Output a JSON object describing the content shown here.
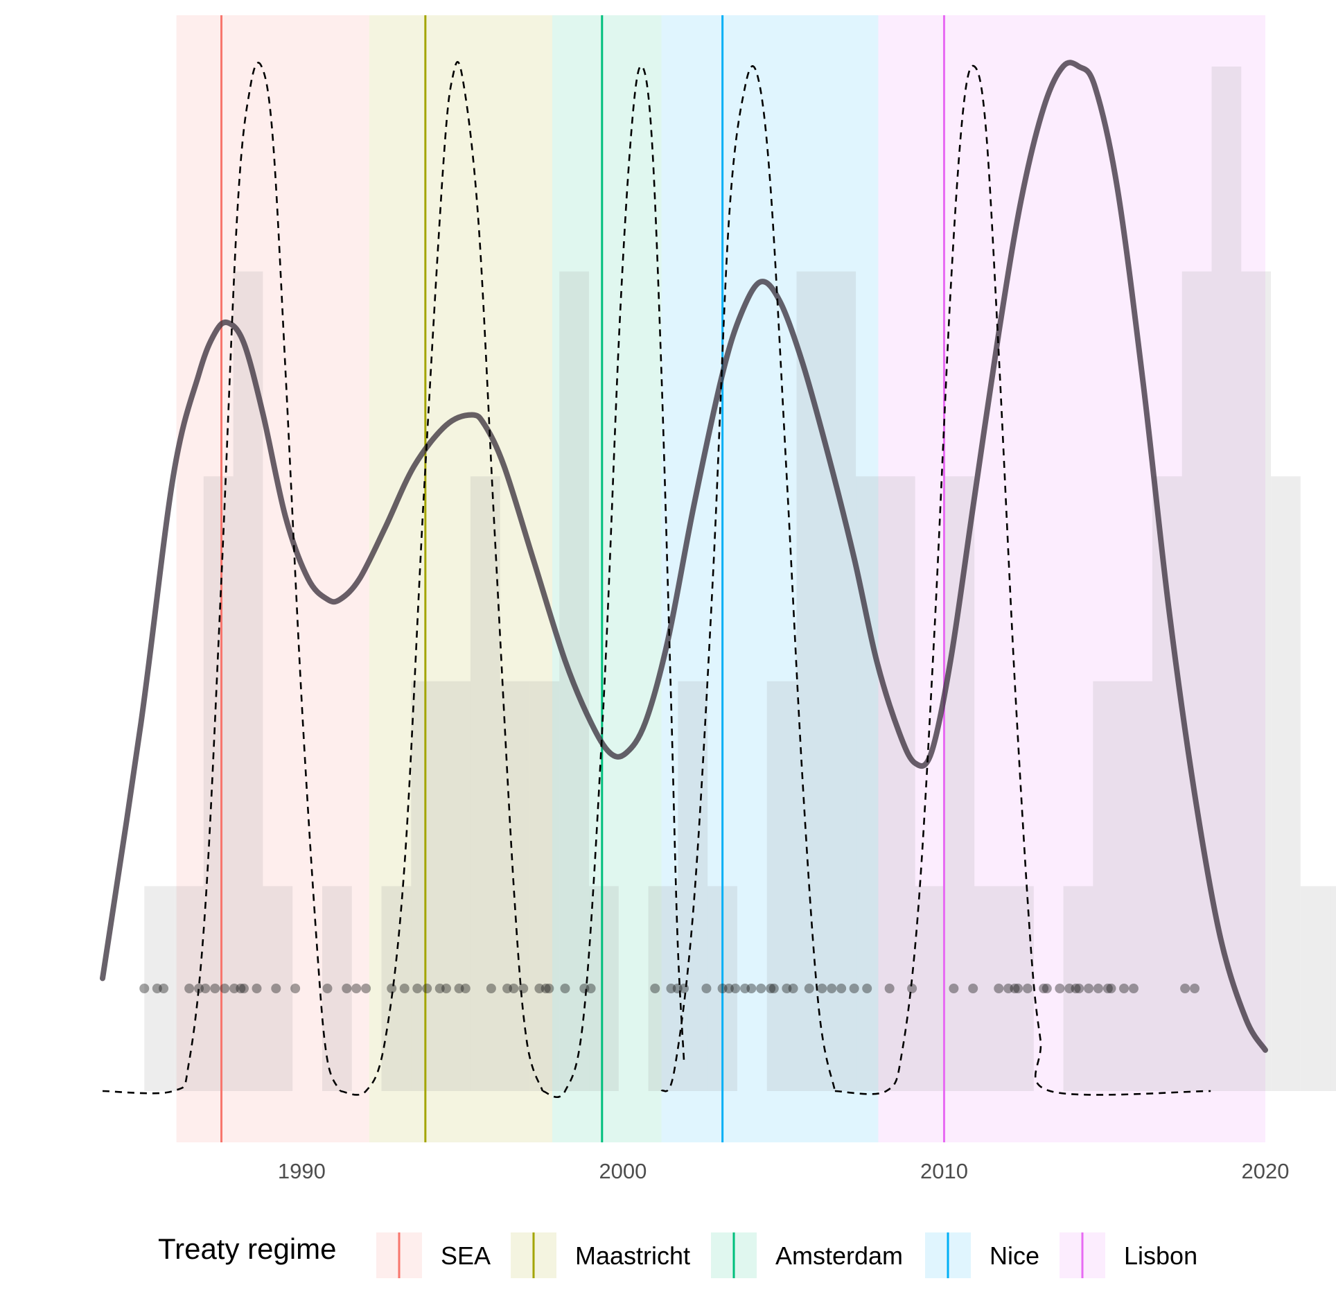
{
  "chart_data": {
    "type": "area",
    "xlim": [
      1983.8,
      2020
    ],
    "ylim": [
      0,
      1
    ],
    "x_ticks": [
      "1990",
      "2000",
      "2010",
      "2020"
    ],
    "x_tick_values": [
      1990,
      2000,
      2010,
      2020
    ],
    "grid": false,
    "legend_position": "bottom",
    "legend": {
      "title": "Treaty regime",
      "entries": [
        {
          "label": "SEA",
          "color": "#F8766D"
        },
        {
          "label": "Maastricht",
          "color": "#A3A500"
        },
        {
          "label": "Amsterdam",
          "color": "#00BF7D"
        },
        {
          "label": "Nice",
          "color": "#00B0F6"
        },
        {
          "label": "Lisbon",
          "color": "#E76BF3"
        }
      ]
    },
    "regimes": [
      {
        "name": "SEA",
        "start": 1986.1,
        "end": 1992.1,
        "signed": 1987.5,
        "color": "#F8766D"
      },
      {
        "name": "Maastricht",
        "start": 1992.1,
        "end": 1997.8,
        "signed": 1993.85,
        "color": "#A3A500"
      },
      {
        "name": "Amsterdam",
        "start": 1997.8,
        "end": 2001.2,
        "signed": 1999.35,
        "color": "#00BF7D"
      },
      {
        "name": "Nice",
        "start": 2001.2,
        "end": 2007.95,
        "signed": 2003.1,
        "color": "#00B0F6"
      },
      {
        "name": "Lisbon",
        "start": 2007.95,
        "end": 2020,
        "signed": 2010.0,
        "color": "#E76BF3"
      }
    ],
    "histogram": {
      "bin_width": 0.923,
      "first_edge": 1985.1,
      "counts": [
        1,
        1,
        3,
        4,
        1,
        0,
        1,
        0,
        1,
        2,
        2,
        3,
        2,
        2,
        4,
        1,
        0,
        1,
        2,
        1,
        0,
        2,
        4,
        4,
        3,
        3,
        1,
        3,
        1,
        1,
        0,
        1,
        2,
        2,
        3,
        4,
        5,
        4,
        3,
        1,
        1
      ]
    },
    "events": [
      1985.1,
      1985.5,
      1985.7,
      1986.5,
      1986.8,
      1987.0,
      1987.3,
      1987.6,
      1987.9,
      1988.1,
      1988.2,
      1988.6,
      1989.2,
      1989.8,
      1990.8,
      1991.4,
      1991.7,
      1992.0,
      1992.8,
      1993.2,
      1993.6,
      1993.9,
      1994.3,
      1994.5,
      1994.9,
      1995.1,
      1995.9,
      1996.4,
      1996.6,
      1996.9,
      1997.4,
      1997.6,
      1997.7,
      1998.2,
      1998.8,
      1999.0,
      2001.0,
      2001.5,
      2001.7,
      2001.9,
      2002.6,
      2003.1,
      2003.3,
      2003.5,
      2003.8,
      2004.0,
      2004.3,
      2004.6,
      2004.7,
      2005.1,
      2005.3,
      2005.8,
      2006.2,
      2006.5,
      2006.8,
      2007.2,
      2007.6,
      2008.3,
      2009.0,
      2010.3,
      2010.9,
      2011.7,
      2012.0,
      2012.2,
      2012.3,
      2012.6,
      2013.1,
      2013.2,
      2013.6,
      2013.9,
      2014.1,
      2014.2,
      2014.5,
      2014.8,
      2015.1,
      2015.2,
      2015.6,
      2015.9,
      2017.5,
      2017.8
    ],
    "overall_density": {
      "style": "solid",
      "x": [
        1983.8,
        1985.0,
        1986.0,
        1986.8,
        1987.3,
        1987.7,
        1988.2,
        1988.8,
        1989.5,
        1990.2,
        1990.8,
        1991.2,
        1991.8,
        1992.6,
        1993.5,
        1994.5,
        1995.3,
        1995.7,
        1996.3,
        1997.2,
        1998.2,
        1999.0,
        1999.6,
        2000.1,
        2000.7,
        2001.4,
        2002.2,
        2003.1,
        2003.7,
        2004.3,
        2004.9,
        2005.6,
        2006.4,
        2007.2,
        2007.9,
        2008.6,
        2009.1,
        2009.6,
        2010.2,
        2010.9,
        2011.7,
        2012.4,
        2013.1,
        2013.7,
        2014.2,
        2014.7,
        2015.4,
        2016.2,
        2017.0,
        2017.8,
        2018.6,
        2019.4,
        2020.0
      ],
      "y": [
        0.11,
        0.36,
        0.6,
        0.7,
        0.74,
        0.75,
        0.73,
        0.66,
        0.56,
        0.5,
        0.48,
        0.48,
        0.5,
        0.55,
        0.61,
        0.65,
        0.66,
        0.65,
        0.61,
        0.52,
        0.42,
        0.36,
        0.33,
        0.33,
        0.36,
        0.44,
        0.57,
        0.7,
        0.76,
        0.79,
        0.77,
        0.71,
        0.62,
        0.52,
        0.42,
        0.35,
        0.32,
        0.33,
        0.42,
        0.57,
        0.74,
        0.87,
        0.96,
        1.0,
        1.0,
        0.98,
        0.88,
        0.69,
        0.47,
        0.29,
        0.15,
        0.07,
        0.04
      ]
    },
    "regime_densities": [
      {
        "name": "SEA",
        "style": "dashed",
        "x": [
          1983.8,
          1986.0,
          1986.5,
          1987.0,
          1987.5,
          1988.0,
          1988.4,
          1988.75,
          1989.1,
          1989.5,
          1990.0,
          1990.5,
          1990.8,
          1991.2
        ],
        "y": [
          0,
          0,
          0.03,
          0.18,
          0.5,
          0.86,
          0.98,
          1.0,
          0.93,
          0.7,
          0.38,
          0.13,
          0.03,
          0
        ]
      },
      {
        "name": "Maastricht",
        "style": "dashed",
        "x": [
          1991.2,
          1992.0,
          1992.6,
          1993.2,
          1993.8,
          1994.4,
          1994.7,
          1995.0,
          1995.5,
          1996.0,
          1996.6,
          1997.0,
          1997.5
        ],
        "y": [
          0,
          0,
          0.05,
          0.22,
          0.58,
          0.9,
          0.99,
          0.99,
          0.85,
          0.55,
          0.2,
          0.05,
          0
        ]
      },
      {
        "name": "Amsterdam",
        "style": "dashed",
        "x": [
          1997.5,
          1998.2,
          1998.8,
          1999.4,
          1999.9,
          2000.3,
          2000.6,
          2000.9,
          2001.2,
          2001.5,
          2001.7,
          2001.9
        ],
        "y": [
          0,
          0,
          0.08,
          0.38,
          0.75,
          0.95,
          1.0,
          0.93,
          0.7,
          0.38,
          0.15,
          0.03
        ]
      },
      {
        "name": "Nice",
        "style": "dashed",
        "x": [
          2001.2,
          2001.6,
          2002.2,
          2002.8,
          2003.3,
          2003.8,
          2004.2,
          2004.6,
          2005.1,
          2005.6,
          2006.1,
          2006.6
        ],
        "y": [
          0,
          0.02,
          0.18,
          0.5,
          0.85,
          0.98,
          0.99,
          0.88,
          0.6,
          0.3,
          0.08,
          0
        ]
      },
      {
        "name": "Lisbon",
        "style": "dashed",
        "x": [
          2006.6,
          2008.2,
          2008.7,
          2009.2,
          2009.7,
          2010.2,
          2010.6,
          2010.95,
          2011.3,
          2011.7,
          2012.2,
          2012.7,
          2013.0,
          2013.3,
          2018.3
        ],
        "y": [
          0,
          0,
          0.04,
          0.18,
          0.45,
          0.78,
          0.96,
          1.0,
          0.94,
          0.72,
          0.4,
          0.14,
          0.05,
          0,
          0
        ]
      }
    ]
  }
}
